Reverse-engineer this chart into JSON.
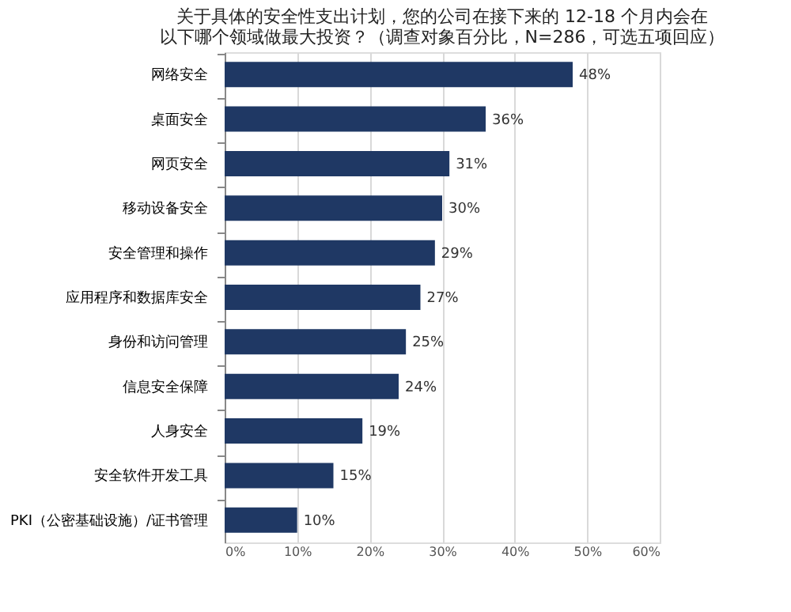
{
  "chart_data": {
    "type": "bar",
    "orientation": "horizontal",
    "title": [
      "关于具体的安全性支出计划，您的公司在接下来的 12-18 个月内会在",
      "以下哪个领域做最大投资？（调查对象百分比，N=286，可选五项回应）"
    ],
    "categories": [
      "网络安全",
      "桌面安全",
      "网页安全",
      "移动设备安全",
      "安全管理和操作",
      "应用程序和数据库安全",
      "身份和访问管理",
      "信息安全保障",
      "人身安全",
      "安全软件开发工具",
      "PKI（公密基础设施）/证书管理"
    ],
    "values": [
      48,
      36,
      31,
      30,
      29,
      27,
      25,
      24,
      19,
      15,
      10
    ],
    "value_labels": [
      "48%",
      "36%",
      "31%",
      "30%",
      "29%",
      "27%",
      "25%",
      "24%",
      "19%",
      "15%",
      "10%"
    ],
    "color": "#1f3864",
    "xlim": [
      0,
      60
    ],
    "xticks": [
      {
        "value": 0,
        "label": "0%"
      },
      {
        "value": 10,
        "label": "10%"
      },
      {
        "value": 20,
        "label": "20%"
      },
      {
        "value": 30,
        "label": "30%"
      },
      {
        "value": 40,
        "label": "40%"
      },
      {
        "value": 50,
        "label": "50%"
      },
      {
        "value": 60,
        "label": "60%"
      }
    ],
    "grid": "x"
  }
}
